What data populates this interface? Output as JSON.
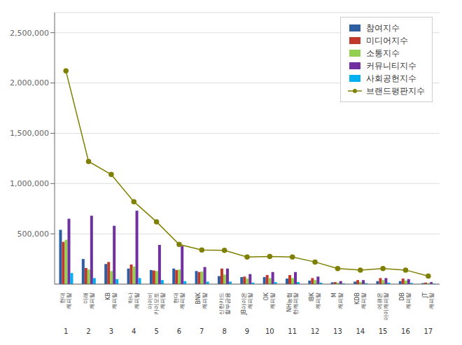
{
  "chart_data": {
    "type": "bar",
    "categories": [
      "현대\n캐피탈",
      "미래\n캐피탈",
      "KB\n캐피탈",
      "하나\n캐피탈",
      "아이비\n카이모토\n캐피탈",
      "현대\n캐피탈",
      "BNK\n캐피탈",
      "신한카드\n할부금융",
      "JB아이온\n캐피탈",
      "OK\n캐피탈",
      "NH농협\n한캐피탈",
      "IBK\n캐피탈",
      "M\n캐피탈",
      "KDB\n캐피탈",
      "에큐온\n아이캐피탈",
      "DB\n캐피탈",
      "JT\n캐피탈"
    ],
    "series": [
      {
        "name": "참여지수",
        "color": "#2e5fa3",
        "values": [
          540000,
          250000,
          200000,
          155000,
          140000,
          155000,
          130000,
          80000,
          70000,
          70000,
          55000,
          35000,
          18000,
          25000,
          30000,
          30000,
          10000
        ]
      },
      {
        "name": "미디어지수",
        "color": "#c0392b",
        "values": [
          420000,
          160000,
          220000,
          195000,
          135000,
          140000,
          120000,
          155000,
          75000,
          90000,
          90000,
          60000,
          20000,
          40000,
          60000,
          55000,
          15000
        ]
      },
      {
        "name": "소통지수",
        "color": "#92d050",
        "values": [
          440000,
          145000,
          130000,
          175000,
          130000,
          145000,
          125000,
          95000,
          55000,
          60000,
          60000,
          40000,
          15000,
          20000,
          40000,
          35000,
          10000
        ]
      },
      {
        "name": "커뮤니티지수",
        "color": "#7030a0",
        "values": [
          650000,
          680000,
          580000,
          730000,
          390000,
          380000,
          170000,
          155000,
          100000,
          120000,
          120000,
          75000,
          30000,
          40000,
          60000,
          50000,
          20000
        ]
      },
      {
        "name": "사회공헌지수",
        "color": "#00b0f0",
        "values": [
          110000,
          60000,
          50000,
          60000,
          40000,
          30000,
          25000,
          25000,
          15000,
          20000,
          20000,
          15000,
          8000,
          10000,
          15000,
          12000,
          5000
        ]
      },
      {
        "name": "브랜드평판지수",
        "type": "line",
        "color": "#7f7f00",
        "marker": "circle",
        "values": [
          2120000,
          1220000,
          1090000,
          820000,
          620000,
          395000,
          340000,
          335000,
          270000,
          275000,
          270000,
          220000,
          155000,
          140000,
          155000,
          140000,
          80000
        ]
      }
    ],
    "annotations": [
      "1",
      "2",
      "3",
      "4",
      "5",
      "6",
      "7",
      "8",
      "9",
      "10",
      "11",
      "12",
      "13",
      "14",
      "15",
      "16",
      "17"
    ],
    "ylim": [
      0,
      2700000
    ],
    "yticks": [
      {
        "value": 500000,
        "label": "500,000"
      },
      {
        "value": 1000000,
        "label": "1,000,000"
      },
      {
        "value": 1500000,
        "label": "1,500,000"
      },
      {
        "value": 2000000,
        "label": "2,000,000"
      },
      {
        "value": 2500000,
        "label": "2,500,000"
      }
    ],
    "grid": true,
    "legend": "upper right"
  }
}
